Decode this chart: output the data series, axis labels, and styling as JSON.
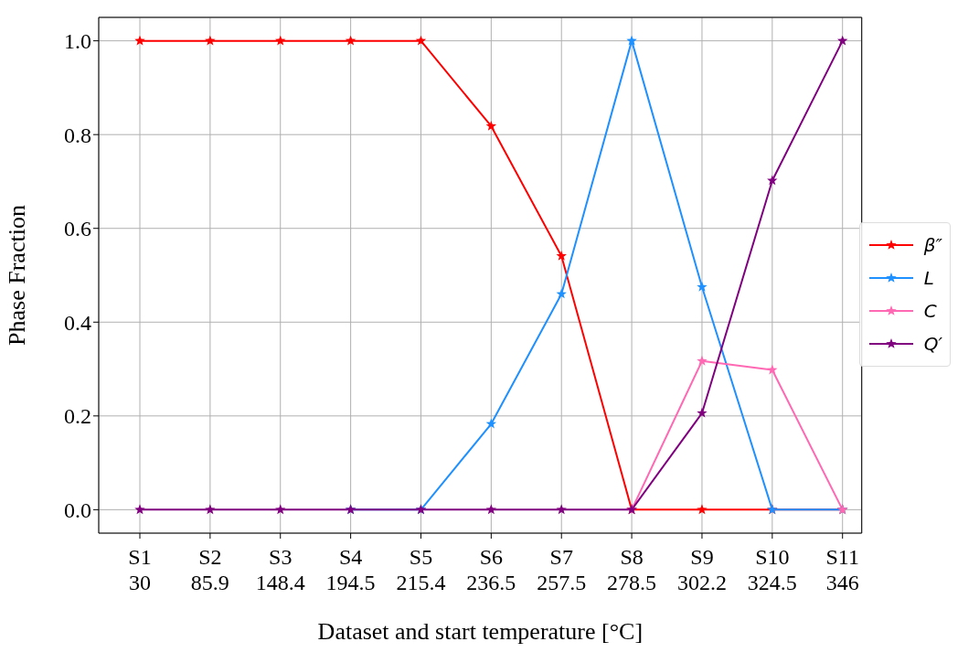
{
  "chart_data": {
    "type": "line",
    "xlabel": "Dataset and start temperature [°C]",
    "ylabel": "Phase Fraction",
    "categories": [
      "S1\n30",
      "S2\n85.9",
      "S3\n148.4",
      "S4\n194.5",
      "S5\n215.4",
      "S6\n236.5",
      "S7\n257.5",
      "S8\n278.5",
      "S9\n302.2",
      "S10\n324.5",
      "S11\n346"
    ],
    "series": [
      {
        "name": "β″",
        "color": "#ff0000",
        "values": [
          1,
          1,
          1,
          1,
          1,
          0.818,
          0.541,
          0,
          0,
          0,
          0
        ]
      },
      {
        "name": "L",
        "color": "#1e90ff",
        "values": [
          null,
          null,
          null,
          0,
          0,
          0.183,
          0.46,
          1,
          0.475,
          0,
          0
        ]
      },
      {
        "name": "C",
        "color": "#ff69b4",
        "values": [
          null,
          null,
          null,
          null,
          null,
          null,
          null,
          0,
          0.317,
          0.298,
          0
        ]
      },
      {
        "name": "Q′",
        "color": "#800080",
        "values": [
          0,
          0,
          0,
          0,
          0,
          0,
          0,
          0,
          0.206,
          0.702,
          1
        ]
      }
    ],
    "ylim": [
      -0.05,
      1.05
    ],
    "yticks": [
      {
        "value": 0,
        "label": "0.0"
      },
      {
        "value": 0.2,
        "label": "0.2"
      },
      {
        "value": 0.4,
        "label": "0.4"
      },
      {
        "value": 0.6,
        "label": "0.6"
      },
      {
        "value": 0.8,
        "label": "0.8"
      },
      {
        "value": 1,
        "label": "1.0"
      }
    ],
    "grid": true,
    "legend": "right",
    "marker": "star",
    "line_style": "solid"
  }
}
